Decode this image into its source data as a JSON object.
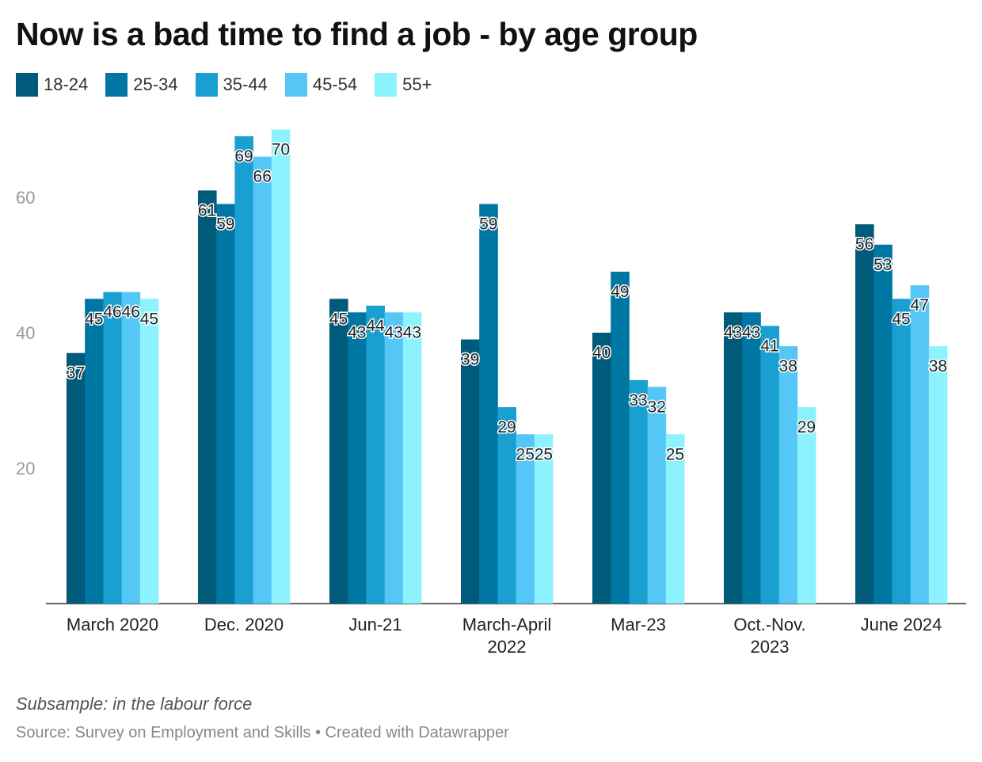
{
  "title": "Now is a bad time to find a job - by age group",
  "note": "Subsample: in the labour force",
  "source": "Source: Survey on Employment and Skills • Created with Datawrapper",
  "chart_data": {
    "type": "bar",
    "title": "Now is a bad time to find a job - by age group",
    "categories": [
      [
        "March 2020"
      ],
      [
        "Dec. 2020"
      ],
      [
        "Jun-21"
      ],
      [
        "March-April",
        "2022"
      ],
      [
        "Mar-23"
      ],
      [
        "Oct.-Nov.",
        "2023"
      ],
      [
        "June 2024"
      ]
    ],
    "series": [
      {
        "name": "18-24",
        "color": "#005a7a",
        "values": [
          37,
          61,
          45,
          39,
          40,
          43,
          56
        ]
      },
      {
        "name": "25-34",
        "color": "#0076a3",
        "values": [
          45,
          59,
          43,
          59,
          49,
          43,
          53
        ]
      },
      {
        "name": "35-44",
        "color": "#1a9fd1",
        "values": [
          46,
          69,
          44,
          29,
          33,
          41,
          45
        ]
      },
      {
        "name": "45-54",
        "color": "#54c7f7",
        "values": [
          46,
          66,
          43,
          25,
          32,
          38,
          47
        ]
      },
      {
        "name": "55+",
        "color": "#8cf3fe",
        "values": [
          45,
          70,
          43,
          25,
          25,
          29,
          38
        ]
      }
    ],
    "yticks": [
      20,
      40,
      60
    ],
    "ylim": [
      0,
      70
    ],
    "grid": false,
    "legend": "top-left"
  }
}
